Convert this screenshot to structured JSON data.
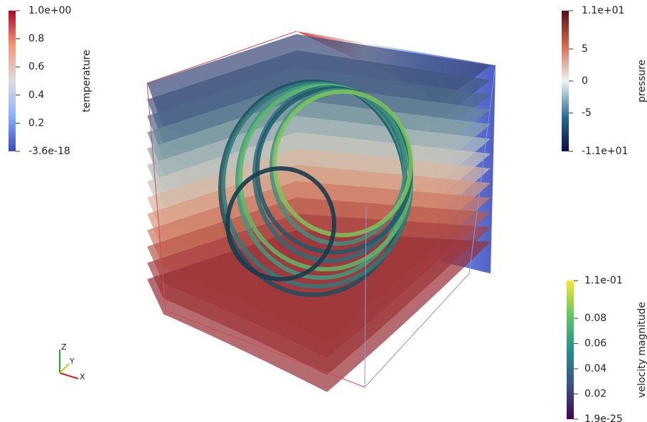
{
  "colorbars": [
    {
      "title": "temperature",
      "lim": [
        -3.6e-18,
        1
      ],
      "ticks": [
        {
          "value": 1,
          "label": "1.0e+00"
        },
        0.8,
        0.6,
        0.4,
        0.2,
        {
          "value": -3.6e-18,
          "label": "-3.6e-18"
        }
      ]
    },
    {
      "title": "pressure",
      "lim": [
        -11,
        11
      ],
      "ticks": [
        {
          "value": 11,
          "label": "1.1e+01"
        },
        5,
        0,
        -5,
        {
          "value": -11,
          "label": "-1.1e+01"
        }
      ]
    },
    {
      "title": "velocity magnitude",
      "lim": [
        1.9e-25,
        0.11
      ],
      "ticks": [
        {
          "value": 0.11,
          "label": "1.1e-01"
        },
        0.08,
        0.06,
        0.04,
        0.02,
        {
          "value": 1.9e-25,
          "label": "1.9e-25"
        }
      ]
    }
  ],
  "axes_triad": {
    "z": "Z",
    "y": "Y",
    "x": "X"
  }
}
